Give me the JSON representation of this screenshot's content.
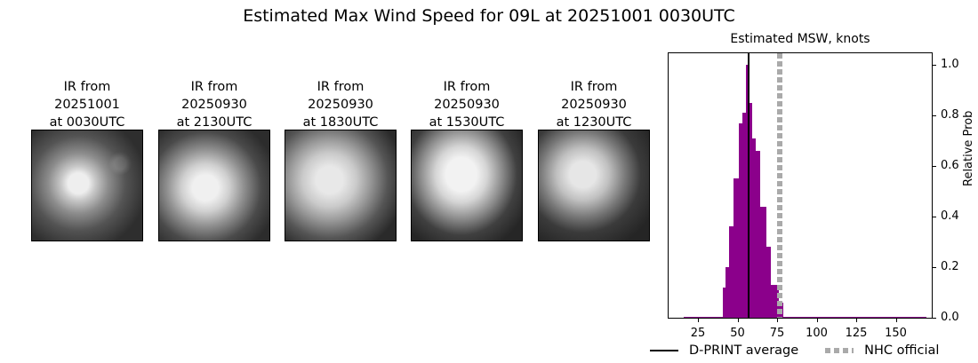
{
  "figure": {
    "suptitle": "Estimated Max Wind Speed for 09L at 20251001 0030UTC"
  },
  "panels": [
    {
      "line1": "IR from",
      "line2": "20251001",
      "line3": "at 0030UTC"
    },
    {
      "line1": "IR from",
      "line2": "20250930",
      "line3": "at 2130UTC"
    },
    {
      "line1": "IR from",
      "line2": "20250930",
      "line3": "at 1830UTC"
    },
    {
      "line1": "IR from",
      "line2": "20250930",
      "line3": "at 1530UTC"
    },
    {
      "line1": "IR from",
      "line2": "20250930",
      "line3": "at 1230UTC"
    }
  ],
  "colors": {
    "bar": "#8b008b",
    "avg_line": "#000000",
    "nhc_line": "#aaaaaa"
  },
  "chart_data": {
    "type": "bar",
    "title": "Estimated MSW, knots",
    "xlabel": "",
    "ylabel": "Relative Prob",
    "xlim": [
      12,
      180
    ],
    "ylim": [
      0.0,
      1.05
    ],
    "xticks": [
      25,
      50,
      75,
      100,
      125,
      150
    ],
    "yticks": [
      0.0,
      0.2,
      0.4,
      0.6,
      0.8,
      1.0
    ],
    "ytick_labels": [
      "0.0",
      "0.2",
      "0.4",
      "0.6",
      "0.8",
      "1.0"
    ],
    "y_axis_side": "right",
    "grid": false,
    "bins": [
      {
        "x0": 15.5,
        "x1": 40.0,
        "value": 0.005
      },
      {
        "x0": 40.0,
        "x1": 42.0,
        "value": 0.12
      },
      {
        "x0": 42.0,
        "x1": 44.2,
        "value": 0.2
      },
      {
        "x0": 44.2,
        "x1": 47.0,
        "value": 0.36
      },
      {
        "x0": 47.0,
        "x1": 50.3,
        "value": 0.55
      },
      {
        "x0": 50.3,
        "x1": 52.5,
        "value": 0.77
      },
      {
        "x0": 52.5,
        "x1": 54.8,
        "value": 0.81
      },
      {
        "x0": 54.8,
        "x1": 56.5,
        "value": 1.0
      },
      {
        "x0": 56.5,
        "x1": 58.7,
        "value": 0.85
      },
      {
        "x0": 58.7,
        "x1": 61.0,
        "value": 0.71
      },
      {
        "x0": 61.0,
        "x1": 63.8,
        "value": 0.66
      },
      {
        "x0": 63.8,
        "x1": 67.7,
        "value": 0.44
      },
      {
        "x0": 67.7,
        "x1": 70.5,
        "value": 0.28
      },
      {
        "x0": 70.5,
        "x1": 75.6,
        "value": 0.13
      },
      {
        "x0": 75.6,
        "x1": 78.4,
        "value": 0.06
      },
      {
        "x0": 78.4,
        "x1": 169.0,
        "value": 0.005
      }
    ],
    "vlines": [
      {
        "name": "D-PRINT average",
        "x": 56.5,
        "style": "solid",
        "color": "#000000"
      },
      {
        "name": "NHC official",
        "x": 76,
        "style": "dotted",
        "color": "#aaaaaa"
      }
    ],
    "legend": {
      "position": "bottom",
      "entries": [
        "D-PRINT average",
        "NHC official"
      ]
    }
  }
}
